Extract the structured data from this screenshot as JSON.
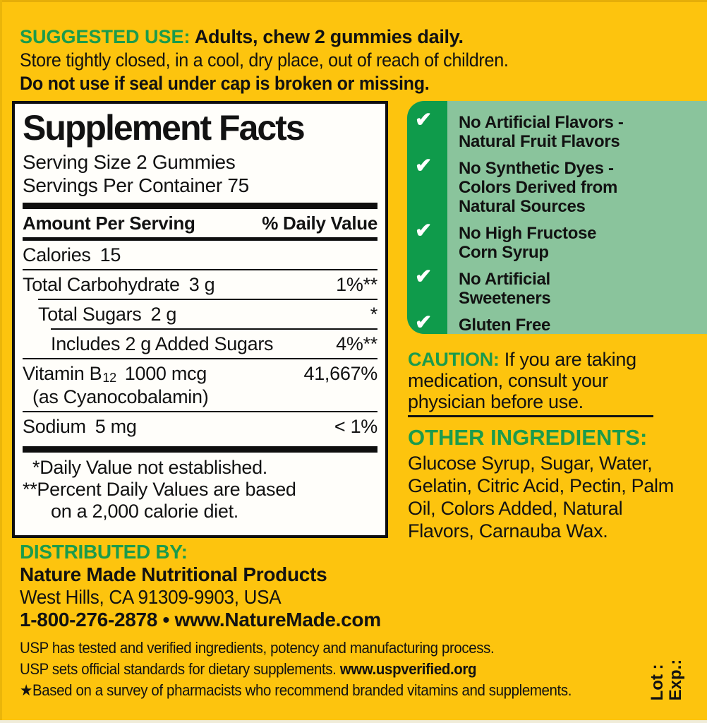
{
  "colors": {
    "background_yellow": "#fdc40e",
    "heading_green": "#1b9b4c",
    "strip_green": "#0f9b4b",
    "benefits_sage": "#8ac49c",
    "text_ink": "#121212",
    "panel_white": "#fffefa"
  },
  "icons": {
    "check": "✔",
    "star": "★"
  },
  "suggested_use": {
    "heading": "SUGGESTED USE:",
    "line1": "Adults, chew 2 gummies daily.",
    "line2": "Store tightly closed, in a cool, dry place, out of reach of children.",
    "line3": "Do not use if seal under cap is broken or missing."
  },
  "supplement_facts": {
    "title": "Supplement Facts",
    "serving_size": "Serving Size 2 Gummies",
    "servings_per_container": "Servings Per Container 75",
    "col_amount": "Amount Per Serving",
    "col_dv": "% Daily Value",
    "rows": [
      {
        "name": "Calories",
        "amount": "15",
        "dv": ""
      },
      {
        "name": "Total Carbohydrate",
        "amount": "3 g",
        "dv": "1%**"
      },
      {
        "name": "Total Sugars",
        "amount": "2 g",
        "dv": "*"
      },
      {
        "name": "Includes 2 g Added Sugars",
        "amount": "",
        "dv": "4%**"
      },
      {
        "name": "Vitamin B",
        "subscript": "12",
        "amount": "1000 mcg",
        "dv": "41,667%",
        "sub_line": "(as Cyanocobalamin)"
      },
      {
        "name": "Sodium",
        "amount": "5 mg",
        "dv": "< 1%"
      }
    ],
    "footnote1": "*Daily Value not established.",
    "footnote2": "**Percent Daily Values are based",
    "footnote3": "on a 2,000 calorie diet."
  },
  "benefits": {
    "items": [
      "No Artificial Flavors -\nNatural Fruit Flavors",
      "No Synthetic Dyes -\nColors Derived from\nNatural Sources",
      "No High Fructose\nCorn Syrup",
      "No Artificial\nSweeteners",
      "Gluten Free"
    ]
  },
  "caution": {
    "heading": "CAUTION:",
    "body": "If you are taking\nmedication, consult your\nphysician before use."
  },
  "other_ingredients": {
    "heading": "OTHER INGREDIENTS:",
    "body": "Glucose Syrup, Sugar, Water,\nGelatin, Citric Acid, Pectin, Palm\nOil, Colors Added, Natural\nFlavors, Carnauba Wax."
  },
  "distributed_by": {
    "heading": "DISTRIBUTED BY:",
    "company": "Nature Made Nutritional Products",
    "address": "West Hills, CA 91309-9903, USA",
    "contact": "1-800-276-2878 • www.NatureMade.com"
  },
  "usp": {
    "line1": "USP has tested and verified ingredients, potency and manufacturing process.",
    "line2_text": "USP sets official standards for dietary supplements. ",
    "line2_link": "www.uspverified.org",
    "line3": "Based on a survey of pharmacists who recommend branded vitamins and supplements."
  },
  "lot_exp": {
    "lot": "Lot :",
    "exp": "Exp.:"
  }
}
